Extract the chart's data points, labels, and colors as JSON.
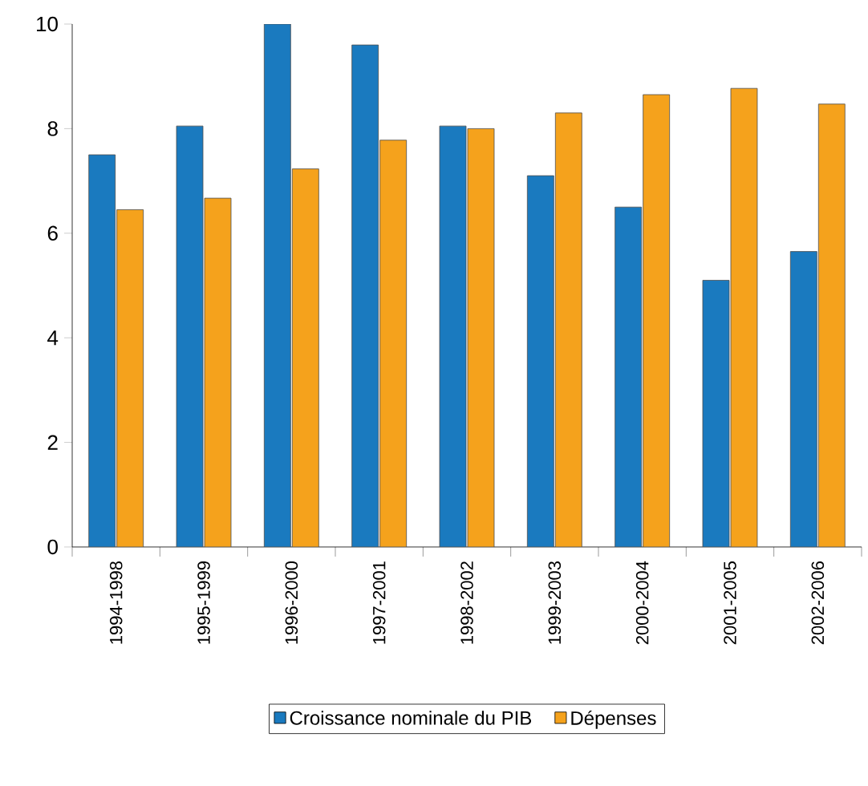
{
  "chart_data": {
    "type": "bar",
    "categories": [
      "1994-1998",
      "1995-1999",
      "1996-2000",
      "1997-2001",
      "1998-2002",
      "1999-2003",
      "2000-2004",
      "2001-2005",
      "2002-2006"
    ],
    "series": [
      {
        "name": "Croissance nominale du PIB",
        "color": "#1a7abf",
        "values": [
          7.5,
          8.05,
          10,
          9.6,
          8.05,
          7.1,
          6.5,
          5.1,
          5.65
        ]
      },
      {
        "name": "Dépenses",
        "color": "#f5a21c",
        "values": [
          6.45,
          6.67,
          7.23,
          7.78,
          8.0,
          8.3,
          8.65,
          8.77,
          8.47
        ]
      }
    ],
    "ylim": [
      0,
      10
    ],
    "yticks": [
      0,
      2,
      4,
      6,
      8,
      10
    ],
    "legend": "bottom"
  }
}
